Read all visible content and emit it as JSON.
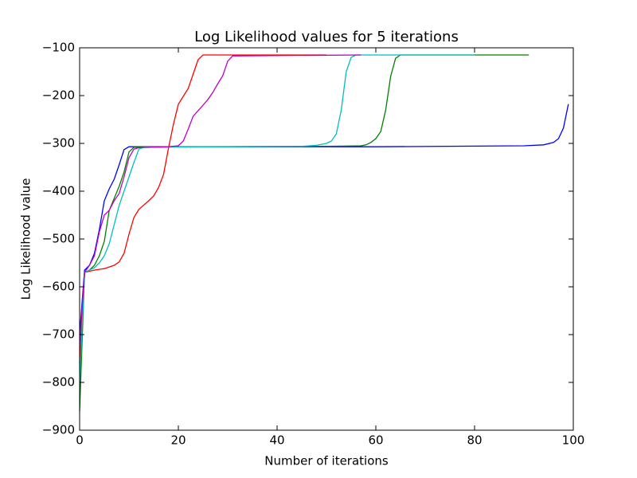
{
  "chart_data": {
    "type": "line",
    "title": "Log Likelihood values for 5 iterations",
    "xlabel": "Number of iterations",
    "ylabel": "Log Likelihood value",
    "xlim": [
      0,
      100
    ],
    "xticks": [
      0,
      20,
      40,
      60,
      80,
      100
    ],
    "ylim": [
      -900,
      -100
    ],
    "yticks": [
      {
        "value": -900,
        "label": "−900"
      },
      {
        "value": -800,
        "label": "−800"
      },
      {
        "value": -700,
        "label": "−700"
      },
      {
        "value": -600,
        "label": "−600"
      },
      {
        "value": -500,
        "label": "−500"
      },
      {
        "value": -400,
        "label": "−400"
      },
      {
        "value": -300,
        "label": "−300"
      },
      {
        "value": -200,
        "label": "−200"
      },
      {
        "value": -100,
        "label": "−100"
      }
    ],
    "grid": false,
    "series": [
      {
        "color": "#0000ff",
        "x": [
          0,
          1,
          2,
          3,
          4,
          5,
          6,
          7,
          8,
          9,
          10,
          20,
          60,
          90,
          94,
          96,
          97,
          98,
          99
        ],
        "values": [
          -700,
          -565,
          -555,
          -530,
          -480,
          -420,
          -395,
          -375,
          -345,
          -313,
          -307,
          -307,
          -307,
          -305,
          -303,
          -298,
          -290,
          -268,
          -218
        ]
      },
      {
        "color": "#008000",
        "x": [
          0,
          1,
          2,
          3,
          4,
          5,
          6,
          7,
          8,
          9,
          10,
          11,
          20,
          50,
          57,
          58,
          59,
          60,
          61,
          62,
          63,
          64,
          65,
          91
        ],
        "values": [
          -860,
          -570,
          -565,
          -555,
          -535,
          -505,
          -440,
          -415,
          -390,
          -360,
          -318,
          -308,
          -307,
          -306,
          -305,
          -303,
          -298,
          -290,
          -275,
          -230,
          -160,
          -122,
          -115,
          -115
        ]
      },
      {
        "color": "#ff0000",
        "x": [
          0,
          1,
          3,
          5,
          7,
          8,
          9,
          10,
          11,
          12,
          14,
          15,
          16,
          17,
          18,
          19,
          20,
          22,
          23,
          24,
          25,
          50
        ],
        "values": [
          -760,
          -570,
          -565,
          -562,
          -555,
          -548,
          -530,
          -490,
          -455,
          -438,
          -420,
          -410,
          -392,
          -365,
          -310,
          -260,
          -218,
          -185,
          -155,
          -125,
          -115,
          -115
        ]
      },
      {
        "color": "#00bfbf",
        "x": [
          0,
          1,
          3,
          4,
          5,
          6,
          7,
          8,
          9,
          10,
          11,
          12,
          13,
          30,
          45,
          48,
          50,
          51,
          52,
          53,
          54,
          55,
          56,
          80
        ],
        "values": [
          -800,
          -570,
          -560,
          -550,
          -535,
          -510,
          -470,
          -430,
          -400,
          -370,
          -340,
          -312,
          -308,
          -307,
          -306,
          -304,
          -300,
          -295,
          -280,
          -230,
          -150,
          -120,
          -115,
          -115
        ]
      },
      {
        "color": "#bf00bf",
        "x": [
          0,
          1,
          2,
          3,
          4,
          5,
          6,
          7,
          8,
          9,
          10,
          11,
          12,
          18,
          20,
          21,
          22,
          23,
          25,
          26,
          27,
          28,
          29,
          30,
          31,
          57
        ],
        "values": [
          -720,
          -570,
          -555,
          -535,
          -485,
          -450,
          -440,
          -420,
          -405,
          -370,
          -330,
          -312,
          -309,
          -307,
          -305,
          -295,
          -270,
          -243,
          -220,
          -208,
          -193,
          -175,
          -158,
          -128,
          -117,
          -115
        ]
      }
    ]
  }
}
